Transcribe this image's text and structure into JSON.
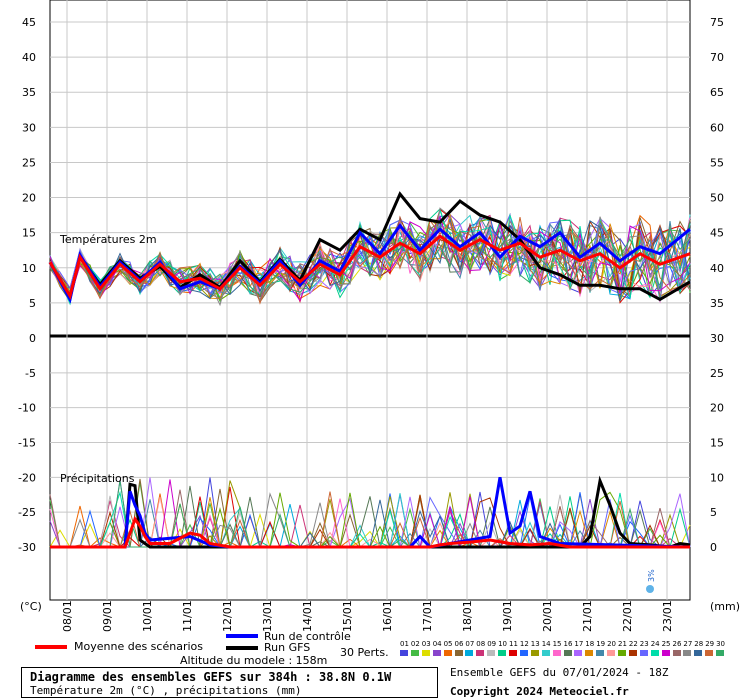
{
  "chart_data": {
    "type": "line",
    "panels": [
      {
        "label": "Températures 2m",
        "left_ticks": [
          "45",
          "40",
          "35",
          "30",
          "25",
          "20",
          "15",
          "10",
          "5",
          "0"
        ],
        "right_ticks": [
          "75",
          "70",
          "65",
          "60",
          "55",
          "50",
          "45",
          "40",
          "35",
          "30"
        ],
        "ylim": [
          0,
          47
        ]
      },
      {
        "label": "Précipitations",
        "left_ticks": [
          "-5",
          "-10",
          "-15",
          "-20",
          "-25",
          "-30"
        ],
        "right_ticks": [
          "25",
          "20",
          "15",
          "10",
          "5",
          "0"
        ],
        "ylim": [
          -37,
          0
        ]
      }
    ],
    "x_ticks": [
      "08/01",
      "09/01",
      "10/01",
      "11/01",
      "12/01",
      "13/01",
      "14/01",
      "15/01",
      "16/01",
      "17/01",
      "18/01",
      "19/01",
      "20/01",
      "21/01",
      "22/01",
      "23/01"
    ],
    "xlim_hours": [
      0,
      384
    ],
    "left_unit": "(°C)",
    "right_unit": "(mm)",
    "series": [
      {
        "name": "Moyenne des scénarios",
        "color": "#ff0000",
        "temp": [
          [
            0,
            10.8
          ],
          [
            12,
            6
          ],
          [
            18,
            11.5
          ],
          [
            30,
            7
          ],
          [
            42,
            10.5
          ],
          [
            54,
            8
          ],
          [
            66,
            10.5
          ],
          [
            78,
            8
          ],
          [
            90,
            8.5
          ],
          [
            102,
            7
          ],
          [
            114,
            10
          ],
          [
            126,
            7.5
          ],
          [
            138,
            10.5
          ],
          [
            150,
            8
          ],
          [
            162,
            10.5
          ],
          [
            174,
            9
          ],
          [
            186,
            13
          ],
          [
            198,
            11.5
          ],
          [
            210,
            13.5
          ],
          [
            222,
            12
          ],
          [
            234,
            14.5
          ],
          [
            246,
            12.5
          ],
          [
            258,
            14
          ],
          [
            270,
            12.5
          ],
          [
            282,
            13.5
          ],
          [
            294,
            11.5
          ],
          [
            306,
            12.5
          ],
          [
            318,
            11
          ],
          [
            330,
            12
          ],
          [
            342,
            10
          ],
          [
            354,
            12
          ],
          [
            366,
            10.5
          ],
          [
            384,
            12
          ]
        ],
        "precip": [
          [
            0,
            -30
          ],
          [
            45,
            -30
          ],
          [
            48,
            -28
          ],
          [
            51,
            -26
          ],
          [
            54,
            -27
          ],
          [
            57,
            -28.5
          ],
          [
            60,
            -29.5
          ],
          [
            72,
            -29.5
          ],
          [
            84,
            -28
          ],
          [
            90,
            -28.3
          ],
          [
            96,
            -29.5
          ],
          [
            108,
            -30
          ],
          [
            228,
            -30
          ],
          [
            234,
            -29.7
          ],
          [
            240,
            -29.5
          ],
          [
            252,
            -29.3
          ],
          [
            264,
            -29
          ],
          [
            276,
            -29.5
          ],
          [
            288,
            -29.7
          ],
          [
            300,
            -29.5
          ],
          [
            312,
            -30
          ],
          [
            384,
            -30
          ]
        ]
      },
      {
        "name": "Run de contrôle",
        "color": "#0000ff",
        "temp": [
          [
            0,
            10.8
          ],
          [
            12,
            5.5
          ],
          [
            18,
            11.8
          ],
          [
            30,
            7.3
          ],
          [
            42,
            10.8
          ],
          [
            54,
            8.2
          ],
          [
            66,
            10.8
          ],
          [
            78,
            7
          ],
          [
            90,
            8
          ],
          [
            102,
            7
          ],
          [
            114,
            10.2
          ],
          [
            126,
            7.8
          ],
          [
            138,
            11
          ],
          [
            150,
            7.5
          ],
          [
            162,
            11
          ],
          [
            174,
            9.5
          ],
          [
            186,
            15
          ],
          [
            198,
            12
          ],
          [
            210,
            16
          ],
          [
            222,
            12.5
          ],
          [
            234,
            15.5
          ],
          [
            246,
            13
          ],
          [
            258,
            15
          ],
          [
            270,
            11.5
          ],
          [
            282,
            14.5
          ],
          [
            294,
            13
          ],
          [
            306,
            15
          ],
          [
            318,
            11.5
          ],
          [
            330,
            13.5
          ],
          [
            342,
            11
          ],
          [
            354,
            13
          ],
          [
            366,
            12
          ],
          [
            384,
            15.5
          ]
        ],
        "precip": [
          [
            0,
            -30
          ],
          [
            45,
            -30
          ],
          [
            48,
            -22
          ],
          [
            51,
            -24
          ],
          [
            54,
            -25.5
          ],
          [
            57,
            -28
          ],
          [
            60,
            -29
          ],
          [
            84,
            -28.5
          ],
          [
            96,
            -29.7
          ],
          [
            108,
            -30
          ],
          [
            216,
            -30
          ],
          [
            222,
            -28.5
          ],
          [
            228,
            -30
          ],
          [
            264,
            -28.5
          ],
          [
            270,
            -20
          ],
          [
            276,
            -28
          ],
          [
            282,
            -27
          ],
          [
            288,
            -22
          ],
          [
            294,
            -28.5
          ],
          [
            306,
            -29.5
          ],
          [
            384,
            -30
          ]
        ]
      },
      {
        "name": "Run GFS",
        "color": "#000000",
        "temp": [
          [
            0,
            10.8
          ],
          [
            12,
            5.8
          ],
          [
            18,
            11.6
          ],
          [
            30,
            7.6
          ],
          [
            42,
            11
          ],
          [
            54,
            8.5
          ],
          [
            66,
            10.2
          ],
          [
            78,
            7.2
          ],
          [
            90,
            9
          ],
          [
            102,
            7.2
          ],
          [
            114,
            11
          ],
          [
            126,
            8
          ],
          [
            138,
            11.2
          ],
          [
            150,
            8.2
          ],
          [
            162,
            14
          ],
          [
            174,
            12.5
          ],
          [
            186,
            15.5
          ],
          [
            198,
            14
          ],
          [
            210,
            20.5
          ],
          [
            222,
            17
          ],
          [
            234,
            16.5
          ],
          [
            246,
            19.5
          ],
          [
            258,
            17.5
          ],
          [
            270,
            16.5
          ],
          [
            282,
            14
          ],
          [
            294,
            10
          ],
          [
            306,
            9
          ],
          [
            318,
            7.5
          ],
          [
            330,
            7.5
          ],
          [
            342,
            7
          ],
          [
            354,
            7
          ],
          [
            366,
            5.5
          ],
          [
            384,
            8
          ]
        ],
        "precip": [
          [
            0,
            -30
          ],
          [
            45,
            -30
          ],
          [
            48,
            -21
          ],
          [
            51,
            -21.2
          ],
          [
            54,
            -29
          ],
          [
            60,
            -30
          ],
          [
            318,
            -30
          ],
          [
            324,
            -28.5
          ],
          [
            330,
            -20.5
          ],
          [
            336,
            -24
          ],
          [
            342,
            -28
          ],
          [
            348,
            -29.5
          ],
          [
            360,
            -29.7
          ],
          [
            372,
            -30
          ],
          [
            378,
            -29.5
          ],
          [
            384,
            -29.7
          ]
        ]
      }
    ],
    "perturbation_colors": [
      "#4444dd",
      "#44bb44",
      "#dddd00",
      "#8844cc",
      "#ee6600",
      "#886633",
      "#00aadd",
      "#cc3377",
      "#bbbbbb",
      "#00cc88",
      "#dd0000",
      "#2266ff",
      "#999900",
      "#33cccc",
      "#ff66cc",
      "#557755",
      "#aa66ff",
      "#dd8800",
      "#4488aa",
      "#ff9999",
      "#66aa00",
      "#aa3300",
      "#6666ff",
      "#00ddaa",
      "#cc00cc",
      "#996666",
      "#888888",
      "#336699",
      "#cc6633",
      "#33aa66"
    ],
    "snow_marker": {
      "label": "3%",
      "hour": 354
    }
  },
  "legend": {
    "mean_label": "Moyenne des scénarios",
    "control_label": "Run de contrôle",
    "gfs_label": "Run GFS",
    "perts_label": "30 Perts.",
    "pert_numbers": [
      "01",
      "02",
      "03",
      "04",
      "05",
      "06",
      "07",
      "08",
      "09",
      "10",
      "11",
      "12",
      "13",
      "14",
      "15",
      "16",
      "17",
      "18",
      "19",
      "20",
      "21",
      "22",
      "23",
      "24",
      "25",
      "26",
      "27",
      "28",
      "29",
      "30"
    ]
  },
  "footer": {
    "altitude": "Altitude du modele : 158m",
    "title_line1": "Diagramme des ensembles GEFS sur 384h : 38.8N 0.1W",
    "title_line2": "Température 2m (°C) , précipitations (mm)",
    "run_info": "Ensemble GEFS du 07/01/2024 - 18Z",
    "copyright": "Copyright 2024 Meteociel.fr"
  }
}
